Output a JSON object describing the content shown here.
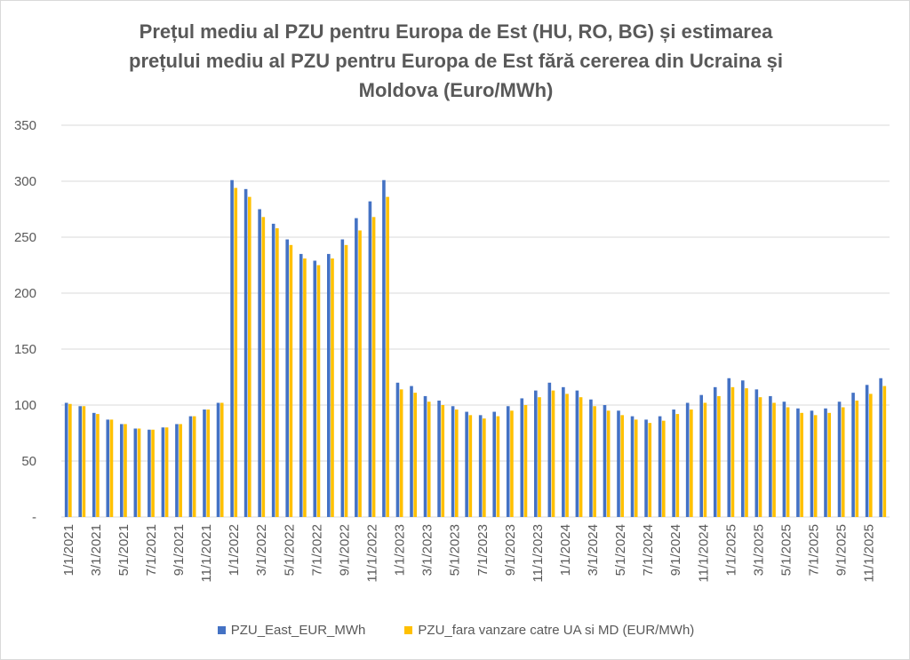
{
  "chart_data": {
    "type": "bar",
    "title_lines": [
      "Prețul mediu al PZU pentru Europa de Est (HU, RO, BG) și estimarea",
      "prețului mediu al PZU pentru Europa de Est fără cererea din Ucraina și",
      "Moldova (Euro/MWh)"
    ],
    "ylim": [
      0,
      350
    ],
    "yticks": [
      {
        "value": 0,
        "label": "-"
      },
      {
        "value": 50,
        "label": "50"
      },
      {
        "value": 100,
        "label": "100"
      },
      {
        "value": 150,
        "label": "150"
      },
      {
        "value": 200,
        "label": "200"
      },
      {
        "value": 250,
        "label": "250"
      },
      {
        "value": 300,
        "label": "300"
      },
      {
        "value": 350,
        "label": "350"
      }
    ],
    "grid": true,
    "legend_position": "bottom",
    "categories": [
      "1/1/2021",
      "2/1/2021",
      "3/1/2021",
      "4/1/2021",
      "5/1/2021",
      "6/1/2021",
      "7/1/2021",
      "8/1/2021",
      "9/1/2021",
      "10/1/2021",
      "11/1/2021",
      "12/1/2021",
      "1/1/2022",
      "2/1/2022",
      "3/1/2022",
      "4/1/2022",
      "5/1/2022",
      "6/1/2022",
      "7/1/2022",
      "8/1/2022",
      "9/1/2022",
      "10/1/2022",
      "11/1/2022",
      "12/1/2022",
      "1/1/2023",
      "2/1/2023",
      "3/1/2023",
      "4/1/2023",
      "5/1/2023",
      "6/1/2023",
      "7/1/2023",
      "8/1/2023",
      "9/1/2023",
      "10/1/2023",
      "11/1/2023",
      "12/1/2023",
      "1/1/2024",
      "2/1/2024",
      "3/1/2024",
      "4/1/2024",
      "5/1/2024",
      "6/1/2024",
      "7/1/2024",
      "8/1/2024",
      "9/1/2024",
      "10/1/2024",
      "11/1/2024",
      "12/1/2024",
      "1/1/2025",
      "2/1/2025",
      "3/1/2025",
      "4/1/2025",
      "5/1/2025",
      "6/1/2025",
      "7/1/2025",
      "8/1/2025",
      "9/1/2025",
      "10/1/2025",
      "11/1/2025",
      "12/1/2025"
    ],
    "visible_tick_labels": [
      "1/1/2021",
      "3/1/2021",
      "5/1/2021",
      "7/1/2021",
      "9/1/2021",
      "11/1/2021",
      "1/1/2022",
      "3/1/2022",
      "5/1/2022",
      "7/1/2022",
      "9/1/2022",
      "11/1/2022",
      "1/1/2023",
      "3/1/2023",
      "5/1/2023",
      "7/1/2023",
      "9/1/2023",
      "11/1/2023",
      "1/1/2024",
      "3/1/2024",
      "5/1/2024",
      "7/1/2024",
      "9/1/2024",
      "11/1/2024",
      "1/1/2025",
      "3/1/2025",
      "5/1/2025",
      "7/1/2025",
      "9/1/2025",
      "11/1/2025"
    ],
    "series": [
      {
        "name": "PZU_East_EUR_MWh",
        "color": "#4472C4",
        "values": [
          102,
          99,
          93,
          87,
          83,
          79,
          78,
          80,
          83,
          90,
          96,
          102,
          301,
          293,
          275,
          262,
          248,
          235,
          229,
          235,
          248,
          267,
          282,
          301,
          120,
          117,
          108,
          104,
          99,
          94,
          91,
          94,
          99,
          106,
          113,
          120,
          116,
          113,
          105,
          100,
          95,
          90,
          87,
          90,
          96,
          102,
          109,
          116,
          124,
          122,
          114,
          108,
          103,
          97,
          95,
          97,
          103,
          111,
          118,
          124
        ]
      },
      {
        "name": "PZU_fara vanzare catre UA si MD (EUR/MWh)",
        "color": "#FFC000",
        "values": [
          101,
          99,
          92,
          87,
          83,
          79,
          78,
          80,
          83,
          90,
          96,
          102,
          294,
          286,
          268,
          258,
          243,
          231,
          225,
          231,
          243,
          256,
          268,
          286,
          114,
          111,
          103,
          100,
          96,
          91,
          88,
          90,
          95,
          100,
          107,
          113,
          110,
          107,
          99,
          95,
          91,
          87,
          84,
          86,
          92,
          96,
          102,
          108,
          116,
          115,
          107,
          102,
          98,
          93,
          91,
          93,
          98,
          104,
          110,
          117
        ]
      }
    ]
  }
}
